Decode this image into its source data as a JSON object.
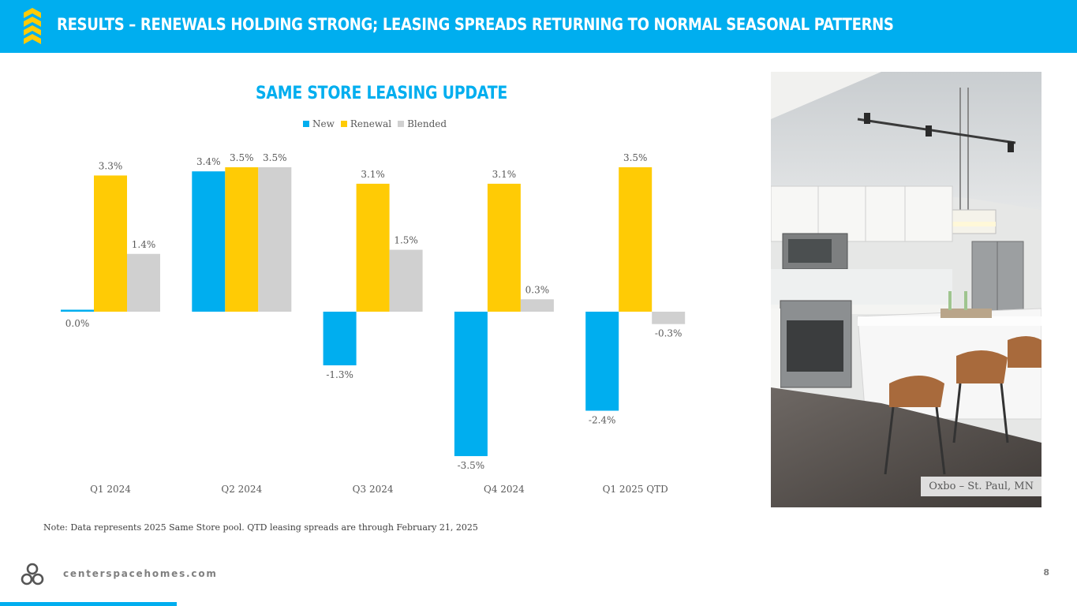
{
  "header": {
    "title": "RESULTS – RENEWALS HOLDING STRONG; LEASING SPREADS RETURNING TO NORMAL SEASONAL PATTERNS"
  },
  "colors": {
    "accent": "#00aeef",
    "new": "#00aeef",
    "renewal": "#ffcb05",
    "blended": "#d0d0d0"
  },
  "chart_data": {
    "type": "bar",
    "title": "SAME STORE LEASING UPDATE",
    "categories": [
      "Q1 2024",
      "Q2 2024",
      "Q3 2024",
      "Q4 2024",
      "Q1 2025 QTD"
    ],
    "series": [
      {
        "name": "New",
        "color": "#00aeef",
        "values": [
          0.0,
          3.4,
          -1.3,
          -3.5,
          -2.4
        ],
        "labels": [
          "0.0%",
          "3.4%",
          "-1.3%",
          "-3.5%",
          "-2.4%"
        ]
      },
      {
        "name": "Renewal",
        "color": "#ffcb05",
        "values": [
          3.3,
          3.5,
          3.1,
          3.1,
          3.5
        ],
        "labels": [
          "3.3%",
          "3.5%",
          "3.1%",
          "3.1%",
          "3.5%"
        ]
      },
      {
        "name": "Blended",
        "color": "#d0d0d0",
        "values": [
          1.4,
          3.5,
          1.5,
          0.3,
          -0.3
        ],
        "labels": [
          "1.4%",
          "3.5%",
          "1.5%",
          "0.3%",
          "-0.3%"
        ]
      }
    ],
    "legend_position": "top",
    "grid": false
  },
  "photo": {
    "caption": "Oxbo – St. Paul, MN"
  },
  "note": "Note: Data represents 2025 Same Store pool. QTD leasing spreads are through February 21, 2025",
  "footer": {
    "website": "centerspacehomes.com",
    "page_number": "8"
  }
}
